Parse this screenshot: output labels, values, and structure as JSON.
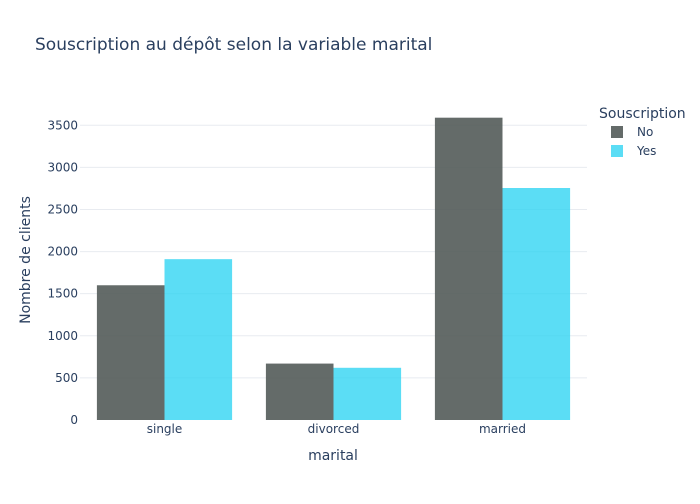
{
  "chart_data": {
    "type": "bar",
    "title": "Souscription au dépôt selon la variable marital",
    "xlabel": "marital",
    "ylabel": "Nombre de clients",
    "categories": [
      "single",
      "divorced",
      "married"
    ],
    "series": [
      {
        "name": "No",
        "values": [
          1600,
          670,
          3590
        ],
        "color": "#4f5654"
      },
      {
        "name": "Yes",
        "values": [
          1910,
          620,
          2755
        ],
        "color": "#2dd4f2"
      }
    ],
    "ylim": [
      0,
      3800
    ],
    "yticks": [
      0,
      500,
      1000,
      1500,
      2000,
      2500,
      3000,
      3500
    ],
    "legend": {
      "title": "Souscription",
      "placement": "top-right"
    },
    "grid": true
  }
}
